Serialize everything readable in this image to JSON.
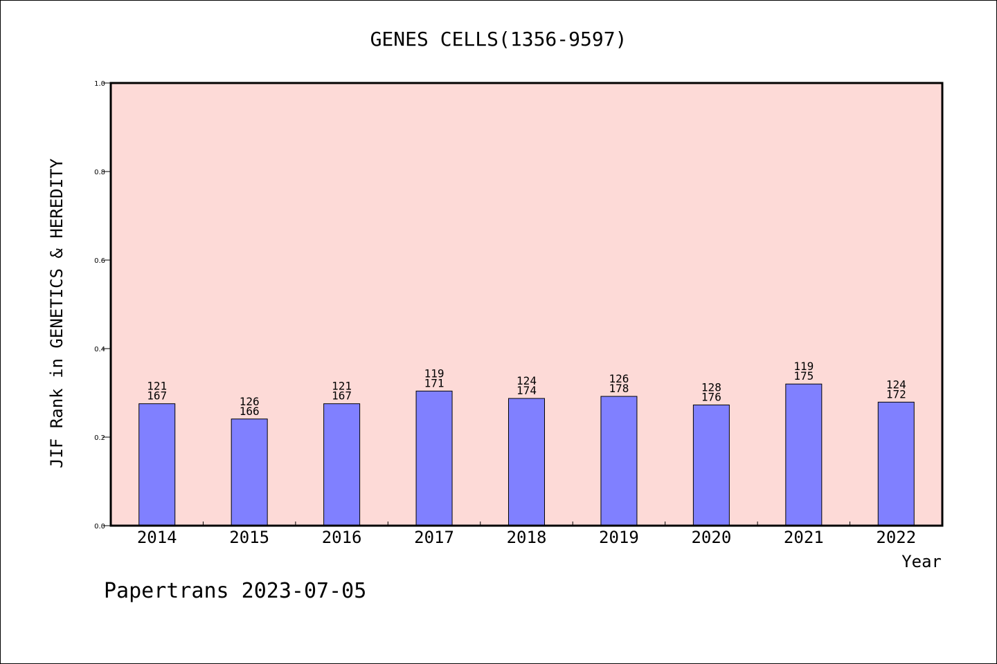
{
  "footer": "Papertrans 2023-07-05",
  "colors": {
    "plot_background": "#fddad7",
    "bar_fill": "#8080ff",
    "bar_stroke": "#000000"
  },
  "chart_data": {
    "type": "bar",
    "title": "GENES CELLS(1356-9597)",
    "xlabel": "Year",
    "ylabel": "JIF Rank in GENETICS & HEREDITY",
    "ylim": [
      0,
      1.0
    ],
    "yticks": [
      "0.0",
      "0.2",
      "0.4",
      "0.6",
      "0.8",
      "1.0"
    ],
    "grid": false,
    "categories": [
      "2014",
      "2015",
      "2016",
      "2017",
      "2018",
      "2019",
      "2020",
      "2021",
      "2022"
    ],
    "values": [
      0.2755,
      0.241,
      0.2755,
      0.3041,
      0.2874,
      0.2921,
      0.2727,
      0.32,
      0.2791
    ],
    "rank": [
      "121",
      "126",
      "121",
      "119",
      "124",
      "126",
      "128",
      "119",
      "124"
    ],
    "total": [
      "167",
      "166",
      "167",
      "171",
      "174",
      "178",
      "176",
      "175",
      "172"
    ]
  }
}
